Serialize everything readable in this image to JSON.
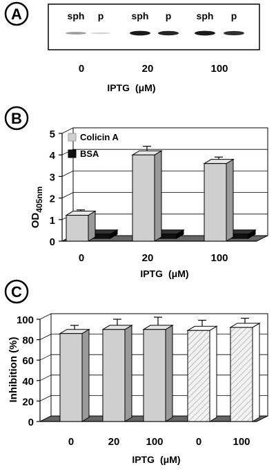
{
  "panel_a": {
    "label": "A",
    "lane_labels": [
      "sph",
      "p",
      "sph",
      "p",
      "sph",
      "p"
    ],
    "lane_intensity": [
      0.35,
      0.1,
      0.95,
      0.9,
      0.95,
      0.85
    ],
    "group_labels": [
      "0",
      "20",
      "100"
    ],
    "xlabel_main": "IPTG",
    "xlabel_unit": "(μM)"
  },
  "colors": {
    "colicin": "#cfcfcf",
    "bsa": "#111111",
    "floor": "#666666",
    "hatched_face": "#f2f2f2",
    "hatch_line": "#999999"
  },
  "chart_data": [
    {
      "type": "bar",
      "panel": "B",
      "categories": [
        "0",
        "20",
        "100"
      ],
      "series": [
        {
          "name": "Colicin A",
          "values": [
            1.2,
            4.0,
            3.6
          ],
          "errors": [
            0.25,
            0.4,
            0.3
          ]
        },
        {
          "name": "BSA",
          "values": [
            0.2,
            0.2,
            0.2
          ],
          "errors": [
            0.15,
            0.15,
            0.15
          ]
        }
      ],
      "ylabel_main": "OD",
      "ylabel_sub": "405nm",
      "xlabel_main": "IPTG",
      "xlabel_unit": "(μM)",
      "yticks": [
        "0",
        "1",
        "2",
        "3",
        "4",
        "5"
      ],
      "ylim": [
        0,
        5
      ],
      "legend": "top-left"
    },
    {
      "type": "bar",
      "panel": "C",
      "categories": [
        "0",
        "20",
        "100",
        "0",
        "100"
      ],
      "values": [
        86,
        90,
        90,
        89,
        92
      ],
      "errors": [
        8,
        10,
        12,
        10,
        9
      ],
      "patterns": [
        "solid",
        "solid",
        "solid",
        "hatched",
        "hatched"
      ],
      "ylabel": "Inhibition (%)",
      "xlabel_main": "IPTG",
      "xlabel_unit": "(μM)",
      "yticks": [
        "0",
        "20",
        "40",
        "60",
        "80",
        "100"
      ],
      "ylim": [
        0,
        100
      ]
    }
  ]
}
